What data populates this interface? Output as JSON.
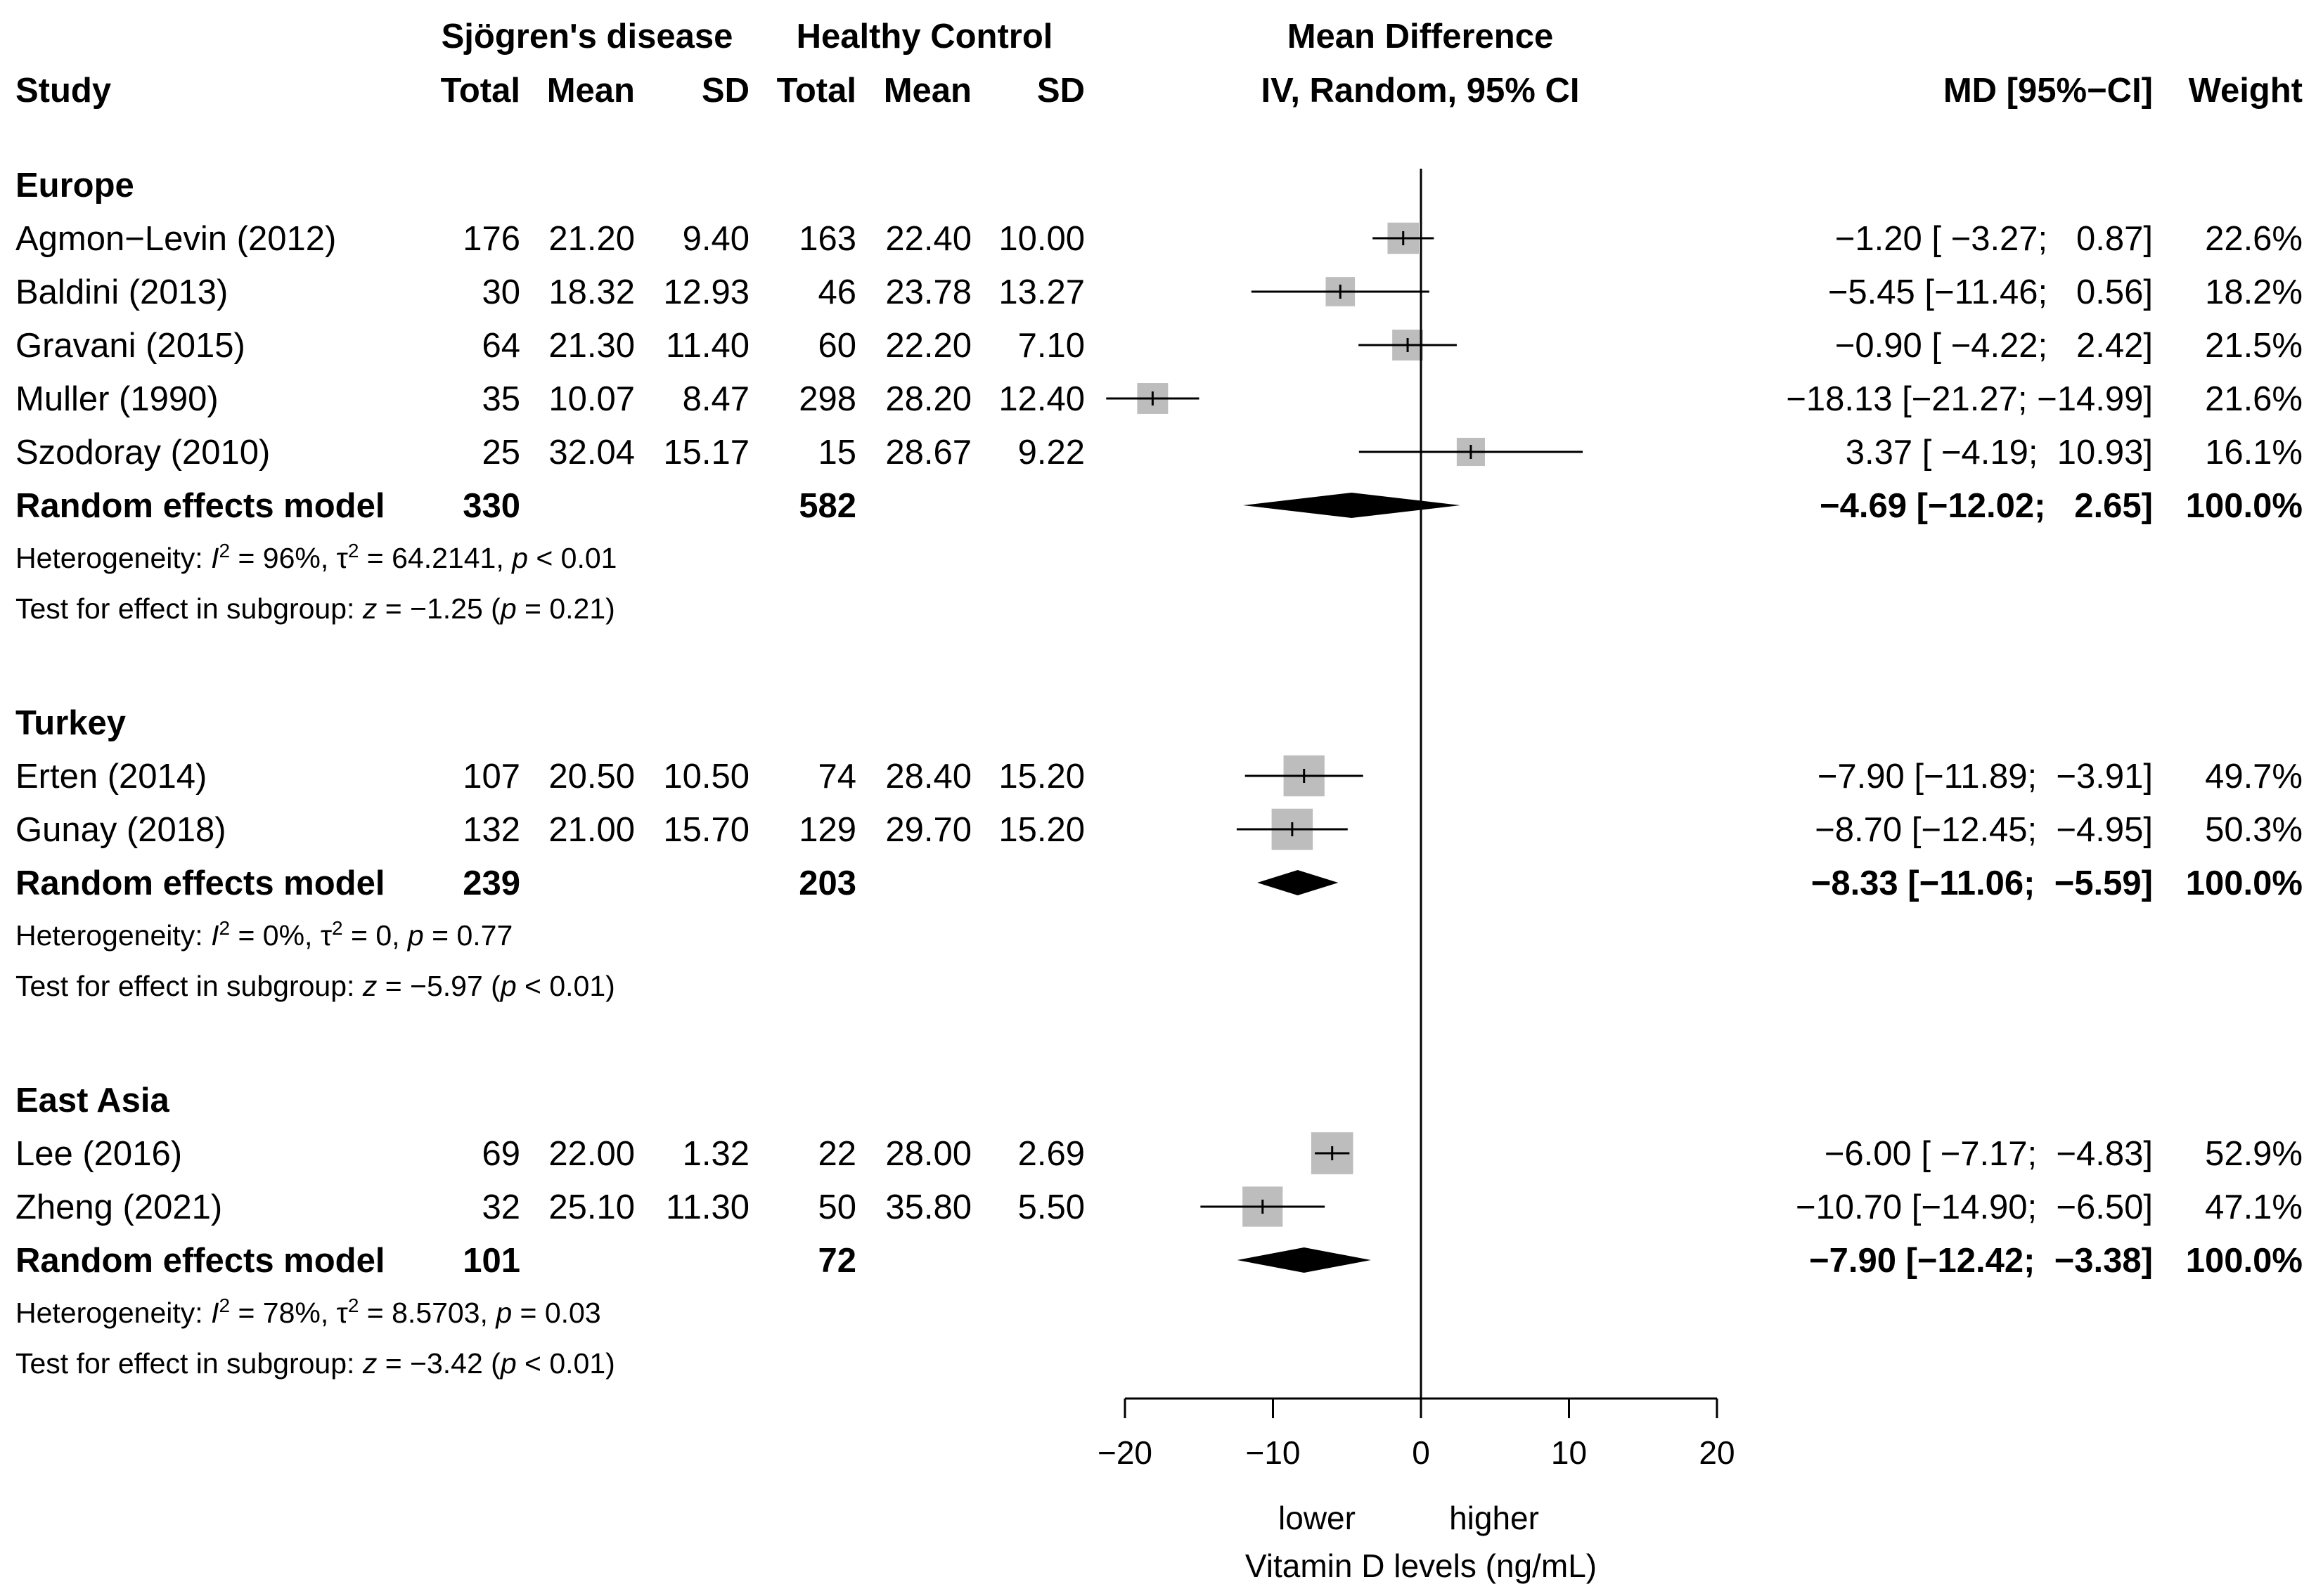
{
  "header": {
    "group1": "Sjögren's disease",
    "group2": "Healthy Control",
    "effect_title": "Mean Difference",
    "effect_method": "IV, Random, 95% CI",
    "study": "Study",
    "total": "Total",
    "mean": "Mean",
    "sd": "SD",
    "md_ci": "MD [95%−CI]",
    "weight": "Weight"
  },
  "chart_data": {
    "type": "forest",
    "xlim": [
      -20,
      20
    ],
    "x_ticks": [
      "−20",
      "−10",
      "0",
      "10",
      "20"
    ],
    "x_tick_values": [
      -20,
      -10,
      0,
      10,
      20
    ],
    "label_lower": "lower",
    "label_higher": "higher",
    "xlabel": "Vitamin D levels (ng/mL)",
    "groups": [
      {
        "name": "Europe",
        "studies": [
          {
            "study": "Agmon−Levin (2012)",
            "n1": "176",
            "mean1": "21.20",
            "sd1": "9.40",
            "n2": "163",
            "mean2": "22.40",
            "sd2": "10.00",
            "md": -1.2,
            "lo": -3.27,
            "hi": 0.87,
            "ci_text": "−1.20 [ −3.27;   0.87]",
            "weight": "22.6%",
            "w": 22.6
          },
          {
            "study": "Baldini (2013)",
            "n1": "30",
            "mean1": "18.32",
            "sd1": "12.93",
            "n2": "46",
            "mean2": "23.78",
            "sd2": "13.27",
            "md": -5.45,
            "lo": -11.46,
            "hi": 0.56,
            "ci_text": "−5.45 [−11.46;   0.56]",
            "weight": "18.2%",
            "w": 18.2
          },
          {
            "study": "Gravani (2015)",
            "n1": "64",
            "mean1": "21.30",
            "sd1": "11.40",
            "n2": "60",
            "mean2": "22.20",
            "sd2": "7.10",
            "md": -0.9,
            "lo": -4.22,
            "hi": 2.42,
            "ci_text": "−0.90 [ −4.22;   2.42]",
            "weight": "21.5%",
            "w": 21.5
          },
          {
            "study": "Muller (1990)",
            "n1": "35",
            "mean1": "10.07",
            "sd1": "8.47",
            "n2": "298",
            "mean2": "28.20",
            "sd2": "12.40",
            "md": -18.13,
            "lo": -21.27,
            "hi": -14.99,
            "ci_text": "−18.13 [−21.27; −14.99]",
            "weight": "21.6%",
            "w": 21.6
          },
          {
            "study": "Szodoray (2010)",
            "n1": "25",
            "mean1": "32.04",
            "sd1": "15.17",
            "n2": "15",
            "mean2": "28.67",
            "sd2": "9.22",
            "md": 3.37,
            "lo": -4.19,
            "hi": 10.93,
            "ci_text": "3.37 [ −4.19;  10.93]",
            "weight": "16.1%",
            "w": 16.1
          }
        ],
        "pooled": {
          "label": "Random effects model",
          "n1": "330",
          "n2": "582",
          "md": -4.69,
          "lo": -12.02,
          "hi": 2.65,
          "ci_text": "−4.69 [−12.02;   2.65]",
          "weight": "100.0%"
        },
        "heterogeneity": {
          "prefix": "Heterogeneity: ",
          "i2": "= 96%, ",
          "tau2": "= 64.2141, ",
          "p": "< 0.01"
        },
        "test": {
          "prefix": "Test for effect in subgroup: ",
          "z": "= −1.25 (",
          "p": "= 0.21)"
        }
      },
      {
        "name": "Turkey",
        "studies": [
          {
            "study": "Erten (2014)",
            "n1": "107",
            "mean1": "20.50",
            "sd1": "10.50",
            "n2": "74",
            "mean2": "28.40",
            "sd2": "15.20",
            "md": -7.9,
            "lo": -11.89,
            "hi": -3.91,
            "ci_text": "−7.90 [−11.89;  −3.91]",
            "weight": "49.7%",
            "w": 49.7
          },
          {
            "study": "Gunay (2018)",
            "n1": "132",
            "mean1": "21.00",
            "sd1": "15.70",
            "n2": "129",
            "mean2": "29.70",
            "sd2": "15.20",
            "md": -8.7,
            "lo": -12.45,
            "hi": -4.95,
            "ci_text": "−8.70 [−12.45;  −4.95]",
            "weight": "50.3%",
            "w": 50.3
          }
        ],
        "pooled": {
          "label": "Random effects model",
          "n1": "239",
          "n2": "203",
          "md": -8.33,
          "lo": -11.06,
          "hi": -5.59,
          "ci_text": "−8.33 [−11.06;  −5.59]",
          "weight": "100.0%"
        },
        "heterogeneity": {
          "prefix": "Heterogeneity: ",
          "i2": "= 0%, ",
          "tau2": "= 0, ",
          "p": "= 0.77"
        },
        "test": {
          "prefix": "Test for effect in subgroup: ",
          "z": "= −5.97 (",
          "p": "< 0.01)"
        }
      },
      {
        "name": "East Asia",
        "studies": [
          {
            "study": "Lee (2016)",
            "n1": "69",
            "mean1": "22.00",
            "sd1": "1.32",
            "n2": "22",
            "mean2": "28.00",
            "sd2": "2.69",
            "md": -6.0,
            "lo": -7.17,
            "hi": -4.83,
            "ci_text": "−6.00 [ −7.17;  −4.83]",
            "weight": "52.9%",
            "w": 52.9
          },
          {
            "study": "Zheng (2021)",
            "n1": "32",
            "mean1": "25.10",
            "sd1": "11.30",
            "n2": "50",
            "mean2": "35.80",
            "sd2": "5.50",
            "md": -10.7,
            "lo": -14.9,
            "hi": -6.5,
            "ci_text": "−10.70 [−14.90;  −6.50]",
            "weight": "47.1%",
            "w": 47.1
          }
        ],
        "pooled": {
          "label": "Random effects model",
          "n1": "101",
          "n2": "72",
          "md": -7.9,
          "lo": -12.42,
          "hi": -3.38,
          "ci_text": "−7.90 [−12.42;  −3.38]",
          "weight": "100.0%"
        },
        "heterogeneity": {
          "prefix": "Heterogeneity: ",
          "i2": "= 78%, ",
          "tau2": "= 8.5703, ",
          "p": "= 0.03"
        },
        "test": {
          "prefix": "Test for effect in subgroup: ",
          "z": "= −3.42 (",
          "p": "< 0.01)"
        }
      }
    ]
  },
  "colors": {
    "square": "#bdbdbd",
    "diamond": "#000000",
    "line": "#000000"
  }
}
